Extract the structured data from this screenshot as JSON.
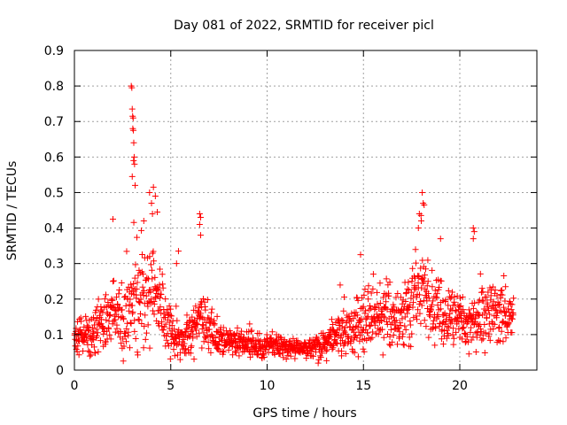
{
  "chart_data": {
    "type": "scatter",
    "title": "Day 081 of 2022, SRMTID for receiver picl",
    "xlabel": "GPS time / hours",
    "ylabel": "SRMTID / TECUs",
    "xlim": [
      0,
      24
    ],
    "ylim": [
      0,
      0.9
    ],
    "xticks": [
      0,
      5,
      10,
      15,
      20
    ],
    "yticks": [
      0,
      0.1,
      0.2,
      0.3,
      0.4,
      0.5,
      0.6,
      0.7,
      0.8,
      0.9
    ],
    "grid": true,
    "marker": "+",
    "color": "#ff0000",
    "x_range_data": [
      0.0,
      22.8
    ],
    "envelope": {
      "x": [
        0.0,
        0.5,
        1.0,
        1.5,
        2.0,
        2.5,
        3.0,
        3.5,
        4.0,
        4.5,
        5.0,
        5.5,
        6.0,
        6.5,
        7.0,
        7.5,
        8.0,
        8.5,
        9.0,
        9.5,
        10.0,
        10.5,
        11.0,
        11.5,
        12.0,
        12.5,
        13.0,
        13.5,
        14.0,
        14.5,
        15.0,
        15.5,
        16.0,
        16.5,
        17.0,
        17.5,
        18.0,
        18.5,
        19.0,
        19.5,
        20.0,
        20.5,
        21.0,
        21.5,
        22.0,
        22.5,
        22.8
      ],
      "base": [
        0.09,
        0.1,
        0.1,
        0.13,
        0.16,
        0.14,
        0.18,
        0.2,
        0.22,
        0.17,
        0.11,
        0.09,
        0.1,
        0.15,
        0.11,
        0.09,
        0.08,
        0.08,
        0.08,
        0.07,
        0.07,
        0.07,
        0.06,
        0.06,
        0.06,
        0.07,
        0.08,
        0.1,
        0.11,
        0.12,
        0.14,
        0.15,
        0.16,
        0.14,
        0.16,
        0.2,
        0.24,
        0.2,
        0.17,
        0.15,
        0.14,
        0.13,
        0.14,
        0.15,
        0.15,
        0.14,
        0.13
      ],
      "spread": [
        0.04,
        0.05,
        0.05,
        0.07,
        0.09,
        0.08,
        0.12,
        0.12,
        0.12,
        0.09,
        0.06,
        0.05,
        0.05,
        0.08,
        0.06,
        0.04,
        0.03,
        0.03,
        0.03,
        0.03,
        0.03,
        0.03,
        0.03,
        0.02,
        0.02,
        0.03,
        0.04,
        0.05,
        0.06,
        0.07,
        0.08,
        0.08,
        0.08,
        0.07,
        0.08,
        0.1,
        0.11,
        0.09,
        0.08,
        0.07,
        0.06,
        0.06,
        0.07,
        0.07,
        0.07,
        0.06,
        0.05
      ]
    },
    "spikes": [
      {
        "x": 2.95,
        "y": 0.8
      },
      {
        "x": 2.98,
        "y": 0.795
      },
      {
        "x": 3.0,
        "y": 0.735
      },
      {
        "x": 3.02,
        "y": 0.715
      },
      {
        "x": 3.05,
        "y": 0.71
      },
      {
        "x": 3.03,
        "y": 0.68
      },
      {
        "x": 3.06,
        "y": 0.675
      },
      {
        "x": 3.08,
        "y": 0.64
      },
      {
        "x": 3.1,
        "y": 0.6
      },
      {
        "x": 3.07,
        "y": 0.59
      },
      {
        "x": 3.12,
        "y": 0.58
      },
      {
        "x": 3.0,
        "y": 0.545
      },
      {
        "x": 3.15,
        "y": 0.52
      },
      {
        "x": 2.0,
        "y": 0.425
      },
      {
        "x": 3.9,
        "y": 0.5
      },
      {
        "x": 4.1,
        "y": 0.515
      },
      {
        "x": 4.2,
        "y": 0.49
      },
      {
        "x": 4.0,
        "y": 0.47
      },
      {
        "x": 4.3,
        "y": 0.445
      },
      {
        "x": 4.05,
        "y": 0.44
      },
      {
        "x": 3.6,
        "y": 0.42
      },
      {
        "x": 6.5,
        "y": 0.44
      },
      {
        "x": 6.55,
        "y": 0.43
      },
      {
        "x": 6.5,
        "y": 0.41
      },
      {
        "x": 6.55,
        "y": 0.38
      },
      {
        "x": 14.85,
        "y": 0.325
      },
      {
        "x": 18.05,
        "y": 0.5
      },
      {
        "x": 18.1,
        "y": 0.47
      },
      {
        "x": 18.15,
        "y": 0.465
      },
      {
        "x": 17.9,
        "y": 0.44
      },
      {
        "x": 18.0,
        "y": 0.42
      },
      {
        "x": 17.85,
        "y": 0.4
      },
      {
        "x": 20.7,
        "y": 0.4
      },
      {
        "x": 20.75,
        "y": 0.39
      },
      {
        "x": 20.7,
        "y": 0.37
      },
      {
        "x": 19.0,
        "y": 0.37
      },
      {
        "x": 5.4,
        "y": 0.335
      },
      {
        "x": 5.3,
        "y": 0.3
      }
    ]
  }
}
